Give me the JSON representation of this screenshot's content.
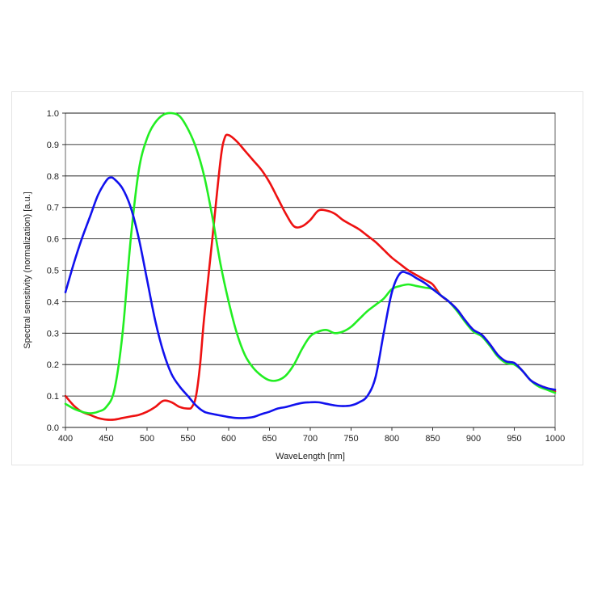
{
  "chart_data": {
    "type": "line",
    "title": "",
    "xlabel": "WaveLength [nm]",
    "ylabel": "Spectral sensitivity (normalization) [a.u.]",
    "xlim": [
      400,
      1000
    ],
    "ylim": [
      0,
      1.0
    ],
    "x_ticks": [
      400,
      450,
      500,
      550,
      600,
      650,
      700,
      750,
      800,
      850,
      900,
      950,
      1000
    ],
    "y_ticks": [
      0,
      0.1,
      0.2,
      0.3,
      0.4,
      0.5,
      0.6,
      0.7,
      0.8,
      0.9,
      1.0
    ],
    "x_tick_labels": [
      "400",
      "450",
      "500",
      "550",
      "600",
      "650",
      "700",
      "750",
      "800",
      "850",
      "900",
      "950",
      "1000"
    ],
    "y_tick_labels": [
      "0.0",
      "0.1",
      "0.2",
      "0.3",
      "0.4",
      "0.5",
      "0.6",
      "0.7",
      "0.8",
      "0.9",
      "1.0"
    ],
    "grid": "horizontal",
    "background": "#ffffff",
    "grid_color": "#000000",
    "legend": "none",
    "series": [
      {
        "color": "#ee1111",
        "points": [
          [
            400,
            0.1
          ],
          [
            410,
            0.07
          ],
          [
            420,
            0.05
          ],
          [
            430,
            0.04
          ],
          [
            440,
            0.03
          ],
          [
            450,
            0.025
          ],
          [
            460,
            0.025
          ],
          [
            470,
            0.03
          ],
          [
            480,
            0.035
          ],
          [
            490,
            0.04
          ],
          [
            500,
            0.05
          ],
          [
            510,
            0.065
          ],
          [
            520,
            0.085
          ],
          [
            530,
            0.08
          ],
          [
            540,
            0.065
          ],
          [
            550,
            0.06
          ],
          [
            555,
            0.065
          ],
          [
            560,
            0.1
          ],
          [
            565,
            0.2
          ],
          [
            570,
            0.35
          ],
          [
            580,
            0.6
          ],
          [
            590,
            0.85
          ],
          [
            595,
            0.92
          ],
          [
            600,
            0.93
          ],
          [
            610,
            0.91
          ],
          [
            620,
            0.88
          ],
          [
            630,
            0.85
          ],
          [
            640,
            0.82
          ],
          [
            650,
            0.78
          ],
          [
            660,
            0.73
          ],
          [
            670,
            0.68
          ],
          [
            680,
            0.64
          ],
          [
            690,
            0.64
          ],
          [
            700,
            0.66
          ],
          [
            710,
            0.69
          ],
          [
            720,
            0.69
          ],
          [
            730,
            0.68
          ],
          [
            740,
            0.66
          ],
          [
            750,
            0.645
          ],
          [
            760,
            0.63
          ],
          [
            770,
            0.61
          ],
          [
            780,
            0.59
          ],
          [
            790,
            0.565
          ],
          [
            800,
            0.54
          ],
          [
            810,
            0.52
          ],
          [
            820,
            0.5
          ],
          [
            830,
            0.485
          ],
          [
            840,
            0.47
          ],
          [
            850,
            0.455
          ],
          [
            860,
            0.42
          ],
          [
            870,
            0.4
          ],
          [
            880,
            0.375
          ],
          [
            890,
            0.34
          ],
          [
            900,
            0.31
          ],
          [
            910,
            0.295
          ],
          [
            920,
            0.265
          ],
          [
            930,
            0.23
          ],
          [
            940,
            0.21
          ],
          [
            950,
            0.205
          ],
          [
            960,
            0.18
          ],
          [
            970,
            0.15
          ],
          [
            980,
            0.135
          ],
          [
            990,
            0.125
          ],
          [
            1000,
            0.115
          ]
        ]
      },
      {
        "color": "#22ee22",
        "points": [
          [
            400,
            0.075
          ],
          [
            410,
            0.06
          ],
          [
            420,
            0.05
          ],
          [
            430,
            0.045
          ],
          [
            440,
            0.05
          ],
          [
            450,
            0.065
          ],
          [
            460,
            0.12
          ],
          [
            470,
            0.3
          ],
          [
            480,
            0.6
          ],
          [
            490,
            0.82
          ],
          [
            500,
            0.92
          ],
          [
            510,
            0.97
          ],
          [
            520,
            0.995
          ],
          [
            530,
            1.0
          ],
          [
            540,
            0.99
          ],
          [
            550,
            0.95
          ],
          [
            560,
            0.89
          ],
          [
            570,
            0.8
          ],
          [
            580,
            0.67
          ],
          [
            590,
            0.52
          ],
          [
            600,
            0.4
          ],
          [
            610,
            0.3
          ],
          [
            620,
            0.23
          ],
          [
            630,
            0.19
          ],
          [
            640,
            0.165
          ],
          [
            650,
            0.15
          ],
          [
            660,
            0.15
          ],
          [
            670,
            0.165
          ],
          [
            680,
            0.2
          ],
          [
            690,
            0.25
          ],
          [
            700,
            0.29
          ],
          [
            710,
            0.305
          ],
          [
            720,
            0.31
          ],
          [
            730,
            0.3
          ],
          [
            740,
            0.305
          ],
          [
            750,
            0.32
          ],
          [
            760,
            0.345
          ],
          [
            770,
            0.37
          ],
          [
            780,
            0.39
          ],
          [
            790,
            0.41
          ],
          [
            800,
            0.44
          ],
          [
            810,
            0.45
          ],
          [
            820,
            0.455
          ],
          [
            830,
            0.45
          ],
          [
            840,
            0.445
          ],
          [
            850,
            0.44
          ],
          [
            860,
            0.42
          ],
          [
            870,
            0.4
          ],
          [
            880,
            0.37
          ],
          [
            890,
            0.335
          ],
          [
            900,
            0.305
          ],
          [
            910,
            0.29
          ],
          [
            920,
            0.26
          ],
          [
            930,
            0.225
          ],
          [
            940,
            0.205
          ],
          [
            950,
            0.2
          ],
          [
            960,
            0.18
          ],
          [
            970,
            0.15
          ],
          [
            980,
            0.13
          ],
          [
            990,
            0.12
          ],
          [
            1000,
            0.11
          ]
        ]
      },
      {
        "color": "#1111ee",
        "points": [
          [
            400,
            0.43
          ],
          [
            410,
            0.52
          ],
          [
            420,
            0.6
          ],
          [
            430,
            0.67
          ],
          [
            440,
            0.74
          ],
          [
            450,
            0.785
          ],
          [
            455,
            0.795
          ],
          [
            460,
            0.79
          ],
          [
            470,
            0.76
          ],
          [
            480,
            0.7
          ],
          [
            490,
            0.6
          ],
          [
            500,
            0.47
          ],
          [
            510,
            0.34
          ],
          [
            520,
            0.24
          ],
          [
            530,
            0.17
          ],
          [
            540,
            0.13
          ],
          [
            550,
            0.1
          ],
          [
            560,
            0.07
          ],
          [
            570,
            0.05
          ],
          [
            580,
            0.043
          ],
          [
            590,
            0.038
          ],
          [
            600,
            0.033
          ],
          [
            610,
            0.03
          ],
          [
            620,
            0.03
          ],
          [
            630,
            0.033
          ],
          [
            640,
            0.042
          ],
          [
            650,
            0.05
          ],
          [
            660,
            0.06
          ],
          [
            670,
            0.065
          ],
          [
            680,
            0.072
          ],
          [
            690,
            0.078
          ],
          [
            700,
            0.08
          ],
          [
            710,
            0.08
          ],
          [
            720,
            0.075
          ],
          [
            730,
            0.07
          ],
          [
            740,
            0.068
          ],
          [
            750,
            0.07
          ],
          [
            760,
            0.08
          ],
          [
            770,
            0.1
          ],
          [
            780,
            0.16
          ],
          [
            790,
            0.3
          ],
          [
            800,
            0.43
          ],
          [
            810,
            0.49
          ],
          [
            820,
            0.49
          ],
          [
            830,
            0.475
          ],
          [
            840,
            0.46
          ],
          [
            850,
            0.44
          ],
          [
            860,
            0.42
          ],
          [
            870,
            0.4
          ],
          [
            880,
            0.375
          ],
          [
            890,
            0.34
          ],
          [
            900,
            0.31
          ],
          [
            910,
            0.295
          ],
          [
            920,
            0.265
          ],
          [
            930,
            0.23
          ],
          [
            940,
            0.21
          ],
          [
            950,
            0.205
          ],
          [
            960,
            0.18
          ],
          [
            970,
            0.15
          ],
          [
            980,
            0.135
          ],
          [
            990,
            0.125
          ],
          [
            1000,
            0.12
          ]
        ]
      }
    ]
  }
}
